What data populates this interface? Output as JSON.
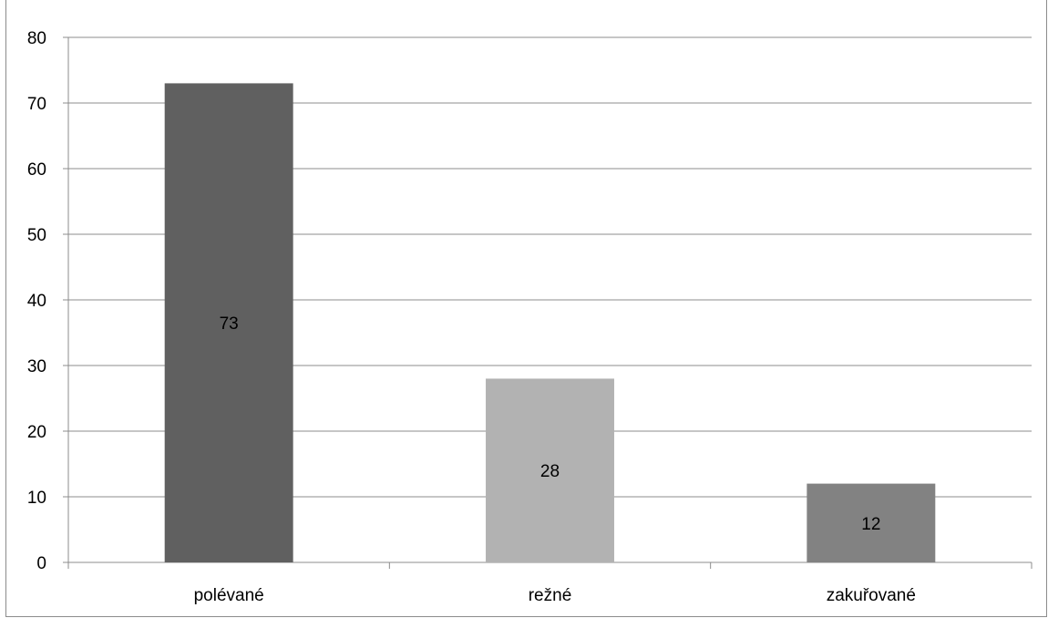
{
  "chart_data": {
    "type": "bar",
    "categories": [
      "polévané",
      "režné",
      "zakuřované"
    ],
    "values": [
      73,
      28,
      12
    ],
    "data_labels": [
      "73",
      "28",
      "12"
    ],
    "colors": [
      "#606060",
      "#b2b2b2",
      "#828282"
    ],
    "title": "",
    "xlabel": "",
    "ylabel": "",
    "ylim": [
      0,
      80
    ],
    "yticks": [
      0,
      10,
      20,
      30,
      40,
      50,
      60,
      70,
      80
    ],
    "grid": true,
    "legend": "none"
  }
}
